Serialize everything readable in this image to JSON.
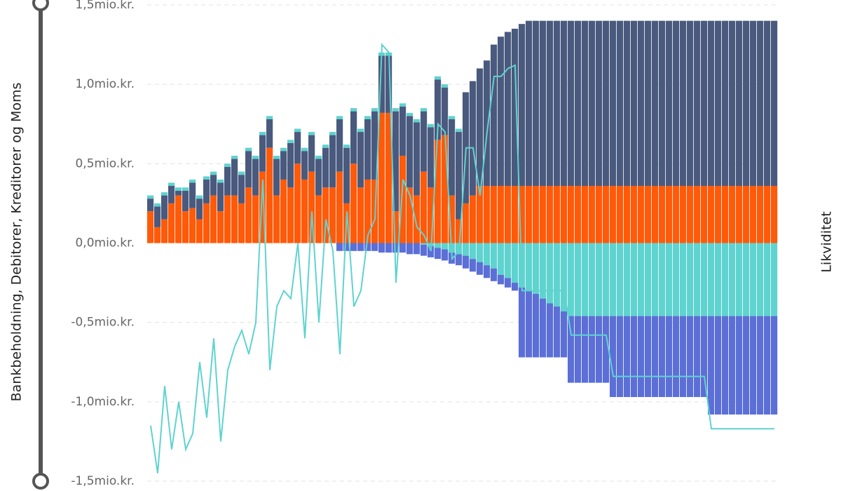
{
  "chart_data": {
    "type": "bar",
    "y_axis_title": "Bankbeholdning, Debitorer, Kreditorer og Moms",
    "y2_axis_title": "Likviditet",
    "ylim": [
      -1.5,
      1.5
    ],
    "yticks": [
      {
        "value": -1.5,
        "label": "-1,5mio.kr."
      },
      {
        "value": -1.0,
        "label": "-1,0mio.kr."
      },
      {
        "value": -0.5,
        "label": "-0,5mio.kr."
      },
      {
        "value": 0,
        "label": "0,0mio.kr."
      },
      {
        "value": 0.5,
        "label": "0,5mio.kr."
      },
      {
        "value": 1.0,
        "label": "1,0mio.kr."
      },
      {
        "value": 1.5,
        "label": "1,5mio.kr."
      }
    ],
    "y2lim": [
      -1.5,
      1.5
    ],
    "grid": true,
    "categories": [
      null,
      null,
      null,
      null,
      null,
      null,
      null,
      null,
      null,
      null,
      null,
      null,
      null,
      null,
      null,
      null,
      null,
      null,
      null,
      null,
      null,
      null,
      null,
      null,
      null,
      null,
      null,
      null,
      null,
      null,
      null,
      null,
      null,
      null,
      null,
      null,
      null,
      null,
      null,
      null,
      null,
      null,
      null,
      null,
      null,
      null,
      null,
      null,
      null,
      null,
      null,
      null,
      null,
      null,
      null,
      null,
      null,
      null,
      null,
      null,
      null,
      null,
      null,
      null,
      null,
      null,
      null,
      null,
      null,
      null,
      null,
      null,
      null,
      null,
      null,
      null,
      null,
      null,
      null,
      null,
      null,
      null,
      null,
      null,
      null,
      null,
      null,
      null,
      null,
      null
    ],
    "series": [
      {
        "type": "bar",
        "color": "#ff5a0a",
        "values": [
          0.2,
          0.1,
          0.15,
          0.25,
          0.3,
          0.2,
          0.22,
          0.15,
          0.25,
          0.3,
          0.2,
          0.3,
          0.3,
          0.25,
          0.35,
          0.3,
          0.45,
          0.6,
          0.3,
          0.4,
          0.35,
          0.5,
          0.4,
          0.45,
          0.3,
          0.35,
          0.35,
          0.45,
          0.25,
          0.5,
          0.35,
          0.4,
          0.4,
          0.82,
          0.82,
          0.2,
          0.55,
          0.35,
          0.3,
          0.45,
          0.35,
          0.65,
          0.68,
          0.3,
          0.15,
          0.25,
          0.3,
          0.36,
          0.36,
          0.36,
          0.36,
          0.36,
          0.36,
          0.36,
          0.36,
          0.36,
          0.36,
          0.36,
          0.36,
          0.36,
          0.36,
          0.36,
          0.36,
          0.36,
          0.36,
          0.36,
          0.36,
          0.36,
          0.36,
          0.36,
          0.36,
          0.36,
          0.36,
          0.36,
          0.36,
          0.36,
          0.36,
          0.36,
          0.36,
          0.36,
          0.36,
          0.36,
          0.36,
          0.36,
          0.36,
          0.36,
          0.36,
          0.36,
          0.36,
          0.36
        ]
      },
      {
        "type": "bar",
        "color": "#4a5a7e",
        "values": [
          0.08,
          0.13,
          0.15,
          0.11,
          0.03,
          0.13,
          0.16,
          0.13,
          0.15,
          0.13,
          0.18,
          0.18,
          0.23,
          0.18,
          0.23,
          0.23,
          0.23,
          0.18,
          0.23,
          0.18,
          0.28,
          0.2,
          0.18,
          0.23,
          0.23,
          0.25,
          0.33,
          0.33,
          0.35,
          0.33,
          0.35,
          0.38,
          0.43,
          0.36,
          0.36,
          0.63,
          0.31,
          0.45,
          0.46,
          0.38,
          0.38,
          0.38,
          0.3,
          0.48,
          0.55,
          0.7,
          0.72,
          0.74,
          0.79,
          0.89,
          0.94,
          0.97,
          0.99,
          1.02,
          1.04,
          1.04,
          1.04,
          1.04,
          1.04,
          1.04,
          1.04,
          1.04,
          1.04,
          1.04,
          1.04,
          1.04,
          1.04,
          1.04,
          1.04,
          1.04,
          1.04,
          1.04,
          1.04,
          1.04,
          1.04,
          1.04,
          1.04,
          1.04,
          1.04,
          1.04,
          1.04,
          1.04,
          1.04,
          1.04,
          1.04,
          1.04,
          1.04,
          1.04,
          1.04,
          1.04
        ]
      },
      {
        "type": "bar",
        "color": "#5fd3cf",
        "values": [
          0.02,
          0.02,
          0.02,
          0.02,
          0.02,
          0.02,
          0.02,
          0.02,
          0.02,
          0.02,
          0.02,
          0.02,
          0.02,
          0.02,
          0.02,
          0.02,
          0.02,
          0.02,
          0.02,
          0.02,
          0.02,
          0.02,
          0.02,
          0.02,
          0.02,
          0.02,
          0.02,
          0.02,
          0.02,
          0.02,
          0.02,
          0.02,
          0.02,
          0.02,
          0.02,
          0.02,
          0.02,
          0.02,
          0.02,
          0.02,
          0.02,
          0.02,
          0.02,
          0.02,
          0.02,
          0,
          0,
          0,
          0,
          0,
          0,
          0,
          0,
          0,
          0,
          0,
          0,
          0,
          0,
          0,
          0,
          0,
          0,
          0,
          0,
          0,
          0,
          0,
          0,
          0,
          0,
          0,
          0,
          0,
          0,
          0,
          0,
          0,
          0,
          0,
          0,
          0,
          0,
          0,
          0,
          0,
          0,
          0,
          0,
          0
        ]
      },
      {
        "type": "bar",
        "color": "#5fd3cf",
        "values": [
          0,
          0,
          0,
          0,
          0,
          0,
          0,
          0,
          0,
          0,
          0,
          0,
          0,
          0,
          0,
          0,
          0,
          0,
          0,
          0,
          0,
          0,
          0,
          0,
          0,
          0,
          0,
          0,
          0,
          0,
          0,
          0,
          0,
          0,
          0,
          0,
          0,
          0,
          0,
          -0.01,
          -0.02,
          -0.03,
          -0.04,
          -0.06,
          -0.07,
          -0.08,
          -0.1,
          -0.12,
          -0.14,
          -0.16,
          -0.2,
          -0.22,
          -0.25,
          -0.28,
          -0.3,
          -0.32,
          -0.35,
          -0.38,
          -0.4,
          -0.43,
          -0.46,
          -0.46,
          -0.46,
          -0.46,
          -0.46,
          -0.46,
          -0.46,
          -0.46,
          -0.46,
          -0.46,
          -0.46,
          -0.46,
          -0.46,
          -0.46,
          -0.46,
          -0.46,
          -0.46,
          -0.46,
          -0.46,
          -0.46,
          -0.46,
          -0.46,
          -0.46,
          -0.46,
          -0.46,
          -0.46,
          -0.46,
          -0.46,
          -0.46,
          -0.46
        ]
      },
      {
        "type": "bar",
        "color": "#5b6fd6",
        "values": [
          0,
          0,
          0,
          0,
          0,
          0,
          0,
          0,
          0,
          0,
          0,
          0,
          0,
          0,
          0,
          0,
          0,
          0,
          0,
          0,
          0,
          0,
          0,
          0,
          0,
          0,
          0,
          -0.05,
          -0.05,
          -0.05,
          -0.05,
          -0.05,
          -0.05,
          -0.06,
          -0.06,
          -0.06,
          -0.06,
          -0.07,
          -0.07,
          -0.07,
          -0.07,
          -0.07,
          -0.07,
          -0.07,
          -0.07,
          -0.08,
          -0.08,
          -0.08,
          -0.08,
          -0.08,
          -0.06,
          -0.06,
          -0.05,
          -0.44,
          -0.42,
          -0.4,
          -0.37,
          -0.34,
          -0.32,
          -0.29,
          -0.42,
          -0.42,
          -0.42,
          -0.42,
          -0.42,
          -0.42,
          -0.51,
          -0.51,
          -0.51,
          -0.51,
          -0.51,
          -0.51,
          -0.51,
          -0.51,
          -0.51,
          -0.51,
          -0.51,
          -0.51,
          -0.51,
          -0.51,
          -0.62,
          -0.62,
          -0.62,
          -0.62,
          -0.62,
          -0.62,
          -0.62,
          -0.62,
          -0.62,
          -0.62
        ]
      },
      {
        "type": "line",
        "axis": "y2",
        "color": "#5fd3cf",
        "values": [
          -1.15,
          -1.45,
          -0.9,
          -1.3,
          -1.0,
          -1.3,
          -1.2,
          -0.75,
          -1.1,
          -0.6,
          -1.25,
          -0.8,
          -0.65,
          -0.55,
          -0.7,
          -0.5,
          0.4,
          -0.8,
          -0.4,
          -0.3,
          -0.35,
          0.0,
          -0.6,
          0.2,
          -0.5,
          0.15,
          -0.05,
          -0.7,
          0.2,
          -0.4,
          -0.3,
          0.05,
          0.15,
          1.25,
          1.2,
          -0.25,
          0.4,
          0.3,
          0.1,
          0.05,
          -0.05,
          0.75,
          0.7,
          -0.1,
          -0.05,
          0.6,
          0.6,
          0.3,
          0.7,
          1.05,
          1.05,
          1.1,
          1.12,
          -0.3,
          -0.3,
          -0.3,
          -0.3,
          -0.3,
          -0.3,
          -0.3,
          -0.58,
          -0.58,
          -0.58,
          -0.58,
          -0.58,
          -0.58,
          -0.84,
          -0.84,
          -0.84,
          -0.84,
          -0.84,
          -0.84,
          -0.84,
          -0.84,
          -0.84,
          -0.84,
          -0.84,
          -0.84,
          -0.84,
          -0.84,
          -1.17,
          -1.17,
          -1.17,
          -1.17,
          -1.17,
          -1.17,
          -1.17,
          -1.17,
          -1.17,
          -1.17
        ]
      }
    ]
  }
}
